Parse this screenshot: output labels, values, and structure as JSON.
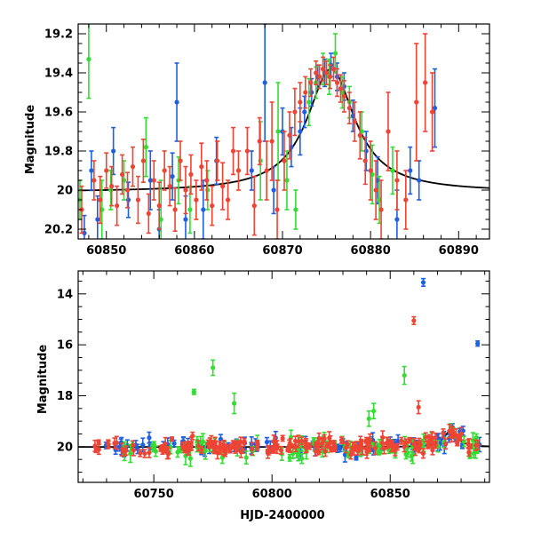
{
  "chart_data": [
    {
      "type": "scatter",
      "panel": "top",
      "title": "",
      "xlabel": "",
      "ylabel": "Magnitude",
      "xlim": [
        60846.8,
        60893.5
      ],
      "ylim": [
        20.25,
        19.15
      ],
      "y_inverted": true,
      "x_ticks": [
        60850,
        60860,
        60870,
        60880,
        60890
      ],
      "x_tick_labels": [
        "60850",
        "60860",
        "60870",
        "60880",
        "60890"
      ],
      "y_ticks": [
        19.2,
        19.4,
        19.6,
        19.8,
        20.0,
        20.2
      ],
      "y_tick_labels": [
        "19.2",
        "19.4",
        "19.6",
        "19.8",
        "20",
        "20.2"
      ],
      "model_curve": {
        "color": "#000000",
        "shape": "lorentzian",
        "t0": 60875.5,
        "baseline": 20.01,
        "amplitude": 0.63,
        "width": 3.3
      },
      "series": [
        {
          "color": "#1f5fe0",
          "points": [
            [
              60847.5,
              20.22,
              0.09
            ],
            [
              60848.3,
              19.9,
              0.1
            ],
            [
              60849.0,
              20.15,
              0.12
            ],
            [
              60850.8,
              19.8,
              0.12
            ],
            [
              60852.5,
              20.05,
              0.09
            ],
            [
              60855.0,
              19.95,
              0.15
            ],
            [
              60856.0,
              20.2,
              0.1
            ],
            [
              60857.5,
              19.93,
              0.12
            ],
            [
              60858.0,
              19.55,
              0.2
            ],
            [
              60859.0,
              20.15,
              0.12
            ],
            [
              60861.0,
              20.1,
              0.15
            ],
            [
              60862.5,
              19.85,
              0.12
            ],
            [
              60866.5,
              19.9,
              0.1
            ],
            [
              60868.0,
              19.45,
              0.3
            ],
            [
              60869.0,
              20.0,
              0.12
            ],
            [
              60870.0,
              19.7,
              0.12
            ],
            [
              60871.0,
              19.78,
              0.1
            ],
            [
              60872.0,
              19.7,
              0.12
            ],
            [
              60872.5,
              19.6,
              0.08
            ],
            [
              60873.3,
              19.5,
              0.07
            ],
            [
              60874.0,
              19.42,
              0.06
            ],
            [
              60874.8,
              19.4,
              0.07
            ],
            [
              60875.5,
              19.36,
              0.06
            ],
            [
              60876.2,
              19.42,
              0.07
            ],
            [
              60877.0,
              19.47,
              0.07
            ],
            [
              60878.0,
              19.62,
              0.08
            ],
            [
              60879.5,
              19.8,
              0.1
            ],
            [
              60880.8,
              19.95,
              0.12
            ],
            [
              60883.0,
              20.15,
              0.15
            ],
            [
              60884.5,
              19.9,
              0.12
            ],
            [
              60885.5,
              19.95,
              0.1
            ],
            [
              60887.3,
              19.58,
              0.2
            ]
          ]
        },
        {
          "color": "#33dd33",
          "points": [
            [
              60847.0,
              20.05,
              0.1
            ],
            [
              60848.0,
              19.33,
              0.2
            ],
            [
              60849.5,
              20.1,
              0.15
            ],
            [
              60850.5,
              20.0,
              0.1
            ],
            [
              60852.0,
              19.95,
              0.1
            ],
            [
              60854.5,
              19.78,
              0.15
            ],
            [
              60856.2,
              20.15,
              0.2
            ],
            [
              60858.2,
              19.95,
              0.12
            ],
            [
              60859.5,
              20.1,
              0.12
            ],
            [
              60861.5,
              20.0,
              0.1
            ],
            [
              60867.5,
              19.85,
              0.2
            ],
            [
              60869.5,
              19.7,
              0.25
            ],
            [
              60870.5,
              19.95,
              0.15
            ],
            [
              60871.5,
              20.1,
              0.1
            ],
            [
              60873.0,
              19.55,
              0.12
            ],
            [
              60873.8,
              19.45,
              0.08
            ],
            [
              60874.6,
              19.38,
              0.08
            ],
            [
              60875.3,
              19.42,
              0.09
            ],
            [
              60876.0,
              19.3,
              0.1
            ],
            [
              60876.8,
              19.5,
              0.08
            ],
            [
              60877.6,
              19.55,
              0.08
            ],
            [
              60879.0,
              19.7,
              0.1
            ],
            [
              60880.2,
              19.92,
              0.15
            ],
            [
              60881.0,
              20.05,
              0.12
            ],
            [
              60882.5,
              19.9,
              0.12
            ]
          ]
        },
        {
          "color": "#ee4433",
          "points": [
            [
              60847.2,
              20.1,
              0.12
            ],
            [
              60848.6,
              19.95,
              0.1
            ],
            [
              60849.3,
              20.05,
              0.12
            ],
            [
              60850.0,
              19.9,
              0.09
            ],
            [
              60850.6,
              19.98,
              0.1
            ],
            [
              60851.2,
              20.08,
              0.1
            ],
            [
              60851.8,
              19.92,
              0.1
            ],
            [
              60852.4,
              20.0,
              0.09
            ],
            [
              60853.0,
              19.88,
              0.1
            ],
            [
              60853.6,
              20.05,
              0.12
            ],
            [
              60854.2,
              19.85,
              0.11
            ],
            [
              60854.8,
              20.12,
              0.1
            ],
            [
              60855.4,
              19.95,
              0.1
            ],
            [
              60856.0,
              20.08,
              0.12
            ],
            [
              60856.6,
              19.9,
              0.1
            ],
            [
              60857.2,
              19.98,
              0.1
            ],
            [
              60857.8,
              20.1,
              0.11
            ],
            [
              60858.4,
              19.85,
              0.1
            ],
            [
              60859.0,
              20.0,
              0.12
            ],
            [
              60859.6,
              19.92,
              0.1
            ],
            [
              60860.2,
              20.05,
              0.1
            ],
            [
              60860.8,
              19.88,
              0.12
            ],
            [
              60861.4,
              19.95,
              0.1
            ],
            [
              60862.0,
              20.08,
              0.1
            ],
            [
              60862.6,
              19.85,
              0.1
            ],
            [
              60863.2,
              19.98,
              0.12
            ],
            [
              60863.8,
              20.05,
              0.1
            ],
            [
              60864.4,
              19.8,
              0.12
            ],
            [
              60865.0,
              19.9,
              0.1
            ],
            [
              60866.0,
              19.8,
              0.12
            ],
            [
              60866.8,
              20.08,
              0.15
            ],
            [
              60867.4,
              19.75,
              0.12
            ],
            [
              60868.2,
              19.9,
              0.15
            ],
            [
              60868.8,
              19.75,
              0.2
            ],
            [
              60869.4,
              20.1,
              0.15
            ],
            [
              60870.2,
              19.85,
              0.15
            ],
            [
              60870.8,
              19.72,
              0.12
            ],
            [
              60871.4,
              19.6,
              0.12
            ],
            [
              60872.0,
              19.55,
              0.1
            ],
            [
              60872.6,
              19.5,
              0.08
            ],
            [
              60873.2,
              19.45,
              0.07
            ],
            [
              60873.8,
              19.4,
              0.06
            ],
            [
              60874.2,
              19.42,
              0.06
            ],
            [
              60874.6,
              19.38,
              0.06
            ],
            [
              60875.0,
              19.4,
              0.06
            ],
            [
              60875.4,
              19.42,
              0.06
            ],
            [
              60875.8,
              19.38,
              0.06
            ],
            [
              60876.2,
              19.45,
              0.07
            ],
            [
              60876.6,
              19.48,
              0.07
            ],
            [
              60877.0,
              19.52,
              0.08
            ],
            [
              60877.6,
              19.58,
              0.08
            ],
            [
              60878.2,
              19.65,
              0.1
            ],
            [
              60878.8,
              19.72,
              0.12
            ],
            [
              60879.4,
              19.85,
              0.12
            ],
            [
              60880.0,
              19.9,
              0.15
            ],
            [
              60880.6,
              20.0,
              0.15
            ],
            [
              60881.2,
              20.1,
              0.15
            ],
            [
              60882.0,
              19.7,
              0.2
            ],
            [
              60883.0,
              19.95,
              0.15
            ],
            [
              60884.0,
              20.05,
              0.15
            ],
            [
              60885.2,
              19.55,
              0.3
            ],
            [
              60886.2,
              19.45,
              0.25
            ],
            [
              60887.0,
              19.6,
              0.2
            ]
          ]
        }
      ]
    },
    {
      "type": "scatter",
      "panel": "bottom",
      "title": "",
      "xlabel": "HJD-2400000",
      "ylabel": "Magnitude",
      "xlim": [
        60718,
        60892
      ],
      "ylim": [
        21.4,
        13.1
      ],
      "y_inverted": true,
      "x_ticks": [
        60750,
        60800,
        60850
      ],
      "x_tick_labels": [
        "60750",
        "60800",
        "60850"
      ],
      "y_ticks": [
        14,
        16,
        18,
        20
      ],
      "y_tick_labels": [
        "14",
        "16",
        "18",
        "20"
      ],
      "model_curve": {
        "color": "#000000",
        "shape": "lorentzian",
        "t0": 60875.5,
        "baseline": 20.01,
        "amplitude": 0.63,
        "width": 3.3
      },
      "series": [
        {
          "color": "#1f5fe0",
          "outliers": [
            [
              60864.0,
              13.55,
              0.15
            ],
            [
              60887.0,
              15.95,
              0.1
            ]
          ],
          "baseline_range": [
            60725,
            60888
          ],
          "baseline_mag": 20.0,
          "scatter": 0.35,
          "count": 90
        },
        {
          "color": "#33dd33",
          "outliers": [
            [
              60767.0,
              17.85,
              0.1
            ],
            [
              60775.0,
              16.9,
              0.3
            ],
            [
              60784.0,
              18.3,
              0.4
            ],
            [
              60843.0,
              18.6,
              0.3
            ],
            [
              60856.0,
              17.2,
              0.35
            ],
            [
              60841.0,
              18.9,
              0.3
            ]
          ],
          "baseline_range": [
            60728,
            60888
          ],
          "baseline_mag": 20.05,
          "scatter": 0.45,
          "count": 90
        },
        {
          "color": "#ee4433",
          "outliers": [
            [
              60860.0,
              15.05,
              0.15
            ],
            [
              60862.0,
              18.45,
              0.25
            ]
          ],
          "baseline_range": [
            60725,
            60888
          ],
          "baseline_mag": 20.0,
          "scatter": 0.3,
          "count": 180
        }
      ]
    }
  ]
}
